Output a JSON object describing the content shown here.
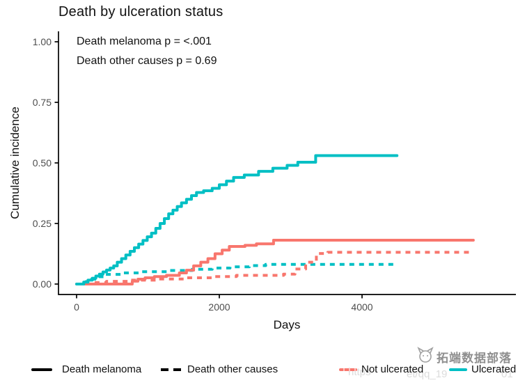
{
  "chart_data": {
    "type": "line-step",
    "title": "Death by ulceration status",
    "annotations": [
      "Death melanoma p = <.001",
      "Death other causes p = 0.69"
    ],
    "xlabel": "Days",
    "ylabel": "Cumulative incidence",
    "x_ticks": [
      {
        "value": 0,
        "label": "0"
      },
      {
        "value": 2000,
        "label": "2000"
      },
      {
        "value": 4000,
        "label": "4000"
      }
    ],
    "y_ticks": [
      {
        "value": 1.0,
        "label": "1.00"
      },
      {
        "value": 0.75,
        "label": "0.75"
      },
      {
        "value": 0.5,
        "label": "0.50"
      },
      {
        "value": 0.25,
        "label": "0.25"
      },
      {
        "value": 0.0,
        "label": "0.00"
      }
    ],
    "xlim": [
      -250,
      6180
    ],
    "ylim": [
      0,
      1.04
    ],
    "grid": false,
    "axis_color": "#000000",
    "tick_label_color": "#4d4d4d",
    "legend_position": "bottom",
    "series": [
      {
        "name": "Ulcerated - Death other causes",
        "group": "Ulcerated",
        "cause": "Death other causes",
        "color": "#00BFC4",
        "linetype": "dashed",
        "points": [
          [
            0,
            0
          ],
          [
            130,
            0.01
          ],
          [
            210,
            0.02
          ],
          [
            310,
            0.03
          ],
          [
            430,
            0.04
          ],
          [
            620,
            0.046
          ],
          [
            900,
            0.051
          ],
          [
            1300,
            0.056
          ],
          [
            1620,
            0.061
          ],
          [
            1900,
            0.066
          ],
          [
            2150,
            0.071
          ],
          [
            2420,
            0.076
          ],
          [
            2650,
            0.081
          ],
          [
            4490,
            0.081
          ]
        ]
      },
      {
        "name": "Not ulcerated - Death other causes",
        "group": "Not ulcerated",
        "cause": "Death other causes",
        "color": "#F8766D",
        "linetype": "dashed",
        "points": [
          [
            0,
            0
          ],
          [
            210,
            0.006
          ],
          [
            420,
            0.011
          ],
          [
            720,
            0.016
          ],
          [
            1120,
            0.021
          ],
          [
            1520,
            0.026
          ],
          [
            1920,
            0.031
          ],
          [
            2240,
            0.036
          ],
          [
            2900,
            0.041
          ],
          [
            3060,
            0.062
          ],
          [
            3210,
            0.09
          ],
          [
            3360,
            0.126
          ],
          [
            3520,
            0.131
          ],
          [
            5560,
            0.131
          ]
        ]
      },
      {
        "name": "Not ulcerated - Death melanoma",
        "group": "Not ulcerated",
        "cause": "Death melanoma",
        "color": "#F8766D",
        "linetype": "solid",
        "points": [
          [
            0,
            0
          ],
          [
            780,
            0.012
          ],
          [
            860,
            0.02
          ],
          [
            960,
            0.026
          ],
          [
            1090,
            0.031
          ],
          [
            1260,
            0.036
          ],
          [
            1440,
            0.046
          ],
          [
            1540,
            0.057
          ],
          [
            1640,
            0.075
          ],
          [
            1740,
            0.09
          ],
          [
            1840,
            0.105
          ],
          [
            1940,
            0.125
          ],
          [
            2040,
            0.14
          ],
          [
            2140,
            0.155
          ],
          [
            2360,
            0.16
          ],
          [
            2520,
            0.166
          ],
          [
            2760,
            0.181
          ],
          [
            5560,
            0.181
          ]
        ]
      },
      {
        "name": "Ulcerated - Death melanoma",
        "group": "Ulcerated",
        "cause": "Death melanoma",
        "color": "#00BFC4",
        "linetype": "solid",
        "points": [
          [
            0,
            0
          ],
          [
            100,
            0.008
          ],
          [
            160,
            0.016
          ],
          [
            220,
            0.024
          ],
          [
            270,
            0.033
          ],
          [
            320,
            0.041
          ],
          [
            370,
            0.05
          ],
          [
            420,
            0.058
          ],
          [
            470,
            0.066
          ],
          [
            520,
            0.075
          ],
          [
            570,
            0.09
          ],
          [
            630,
            0.105
          ],
          [
            690,
            0.12
          ],
          [
            750,
            0.135
          ],
          [
            810,
            0.15
          ],
          [
            870,
            0.165
          ],
          [
            930,
            0.18
          ],
          [
            990,
            0.195
          ],
          [
            1050,
            0.21
          ],
          [
            1110,
            0.23
          ],
          [
            1170,
            0.25
          ],
          [
            1230,
            0.27
          ],
          [
            1290,
            0.29
          ],
          [
            1350,
            0.305
          ],
          [
            1410,
            0.32
          ],
          [
            1470,
            0.335
          ],
          [
            1540,
            0.35
          ],
          [
            1610,
            0.365
          ],
          [
            1680,
            0.378
          ],
          [
            1780,
            0.385
          ],
          [
            1900,
            0.395
          ],
          [
            2000,
            0.41
          ],
          [
            2100,
            0.425
          ],
          [
            2200,
            0.44
          ],
          [
            2350,
            0.45
          ],
          [
            2550,
            0.465
          ],
          [
            2750,
            0.478
          ],
          [
            2950,
            0.49
          ],
          [
            3100,
            0.503
          ],
          [
            3350,
            0.53
          ],
          [
            4490,
            0.53
          ]
        ]
      }
    ],
    "legend": {
      "linetype_items": [
        {
          "label": "Death melanoma",
          "linetype": "solid",
          "color": "#000000"
        },
        {
          "label": "Death other causes",
          "linetype": "dashed",
          "color": "#000000"
        }
      ],
      "color_items": [
        {
          "label": "Not ulcerated",
          "color": "#F8766D"
        },
        {
          "label": "Ulcerated",
          "color": "#00BFC4"
        }
      ]
    }
  },
  "watermark": {
    "brand": "拓端数据部落",
    "url_fragments": [
      "https",
      "et/qq_19",
      "01"
    ]
  }
}
